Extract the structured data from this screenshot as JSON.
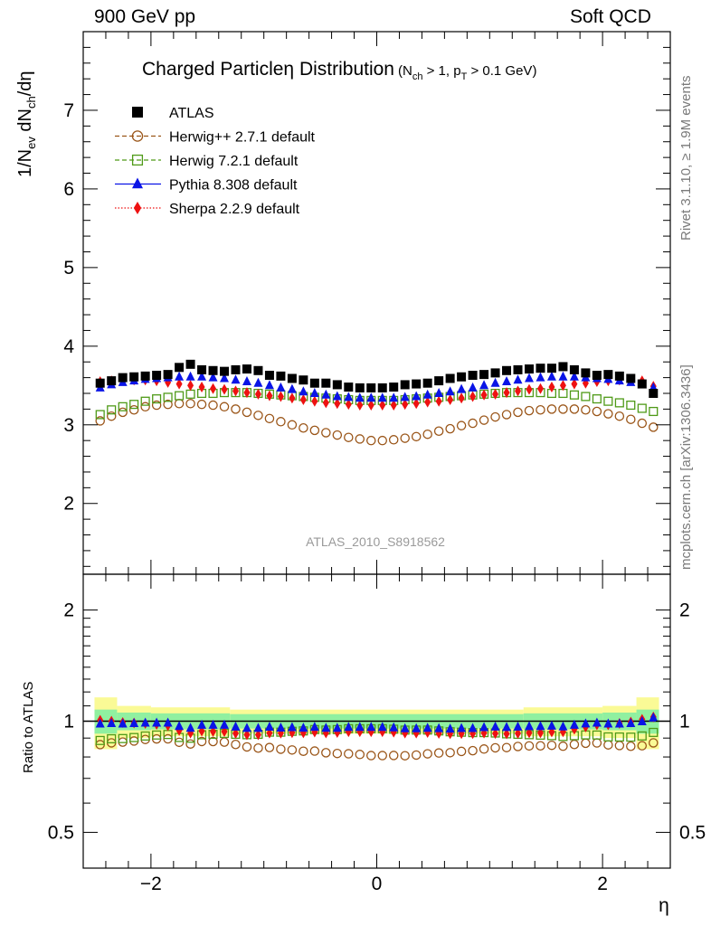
{
  "header": {
    "left": "900 GeV pp",
    "right": "Soft QCD"
  },
  "side_labels": {
    "rivet": "Rivet 3.1.10, ≥ 1.9M events",
    "mcplots": "mcplots.cern.ch [arXiv:1306.3436]"
  },
  "chart_data": [
    {
      "type": "scatter",
      "title": {
        "main": "Charged Particle",
        "eta": "η",
        "rest": " Distribution",
        "cuts_pre": "(N",
        "cuts_sub1": "ch",
        "cuts_mid1": " > 1, p",
        "cuts_sub2": "T",
        "cuts_end": " > 0.1 GeV)"
      },
      "ylabel_parts": {
        "a": "1/N",
        "a_sub": "ev",
        "b": " dN",
        "b_sub": "ch",
        "c": "/dη"
      },
      "xlabel": "η",
      "analysis_label": "ATLAS_2010_S8918562",
      "xlim": [
        -2.6,
        2.6
      ],
      "ylim": [
        1.1,
        8.0
      ],
      "yticks": [
        2,
        3,
        4,
        5,
        6,
        7
      ],
      "xticks": [
        -2,
        0,
        2
      ],
      "legend_position": "top-left",
      "x": [
        -2.45,
        -2.35,
        -2.25,
        -2.15,
        -2.05,
        -1.95,
        -1.85,
        -1.75,
        -1.65,
        -1.55,
        -1.45,
        -1.35,
        -1.25,
        -1.15,
        -1.05,
        -0.95,
        -0.85,
        -0.75,
        -0.65,
        -0.55,
        -0.45,
        -0.35,
        -0.25,
        -0.15,
        -0.05,
        0.05,
        0.15,
        0.25,
        0.35,
        0.45,
        0.55,
        0.65,
        0.75,
        0.85,
        0.95,
        1.05,
        1.15,
        1.25,
        1.35,
        1.45,
        1.55,
        1.65,
        1.75,
        1.85,
        1.95,
        2.05,
        2.15,
        2.25,
        2.35,
        2.45
      ],
      "series": [
        {
          "name": "ATLAS",
          "color": "#000000",
          "marker": "square-filled",
          "line": "none",
          "values": [
            3.53,
            3.56,
            3.6,
            3.61,
            3.62,
            3.63,
            3.64,
            3.73,
            3.77,
            3.7,
            3.69,
            3.68,
            3.7,
            3.71,
            3.69,
            3.63,
            3.62,
            3.59,
            3.57,
            3.53,
            3.53,
            3.51,
            3.48,
            3.47,
            3.47,
            3.47,
            3.48,
            3.51,
            3.52,
            3.53,
            3.56,
            3.59,
            3.61,
            3.63,
            3.64,
            3.66,
            3.69,
            3.7,
            3.71,
            3.72,
            3.72,
            3.74,
            3.7,
            3.66,
            3.63,
            3.64,
            3.62,
            3.59,
            3.52,
            3.4
          ]
        },
        {
          "name": "Herwig++ 2.7.1 default",
          "color": "#9a5518",
          "marker": "circle-open",
          "line": "dashed",
          "values": [
            3.05,
            3.11,
            3.16,
            3.19,
            3.23,
            3.25,
            3.26,
            3.27,
            3.27,
            3.26,
            3.25,
            3.23,
            3.2,
            3.16,
            3.12,
            3.08,
            3.04,
            3.0,
            2.96,
            2.93,
            2.9,
            2.87,
            2.84,
            2.82,
            2.8,
            2.8,
            2.81,
            2.83,
            2.85,
            2.88,
            2.92,
            2.95,
            2.99,
            3.02,
            3.06,
            3.1,
            3.13,
            3.16,
            3.18,
            3.19,
            3.2,
            3.2,
            3.2,
            3.19,
            3.17,
            3.14,
            3.11,
            3.07,
            3.02,
            2.97
          ]
        },
        {
          "name": "Herwig 7.2.1 default",
          "color": "#4f9a18",
          "marker": "square-open",
          "line": "dashed",
          "values": [
            3.13,
            3.19,
            3.23,
            3.26,
            3.3,
            3.33,
            3.35,
            3.37,
            3.39,
            3.4,
            3.4,
            3.41,
            3.41,
            3.41,
            3.4,
            3.39,
            3.38,
            3.37,
            3.36,
            3.35,
            3.34,
            3.33,
            3.32,
            3.31,
            3.31,
            3.31,
            3.31,
            3.32,
            3.33,
            3.34,
            3.35,
            3.36,
            3.37,
            3.38,
            3.39,
            3.4,
            3.41,
            3.41,
            3.41,
            3.41,
            3.4,
            3.4,
            3.38,
            3.36,
            3.33,
            3.3,
            3.28,
            3.25,
            3.21,
            3.17
          ]
        },
        {
          "name": "Pythia 8.308 default",
          "color": "#0a14e6",
          "marker": "triangle-filled",
          "line": "solid",
          "values": [
            3.47,
            3.51,
            3.54,
            3.56,
            3.58,
            3.59,
            3.6,
            3.61,
            3.61,
            3.61,
            3.6,
            3.59,
            3.57,
            3.55,
            3.53,
            3.5,
            3.47,
            3.45,
            3.42,
            3.4,
            3.38,
            3.36,
            3.35,
            3.34,
            3.34,
            3.34,
            3.34,
            3.35,
            3.36,
            3.38,
            3.4,
            3.42,
            3.45,
            3.47,
            3.5,
            3.53,
            3.55,
            3.57,
            3.59,
            3.6,
            3.61,
            3.61,
            3.61,
            3.6,
            3.59,
            3.58,
            3.56,
            3.54,
            3.51,
            3.47
          ]
        },
        {
          "name": "Sherpa 2.2.9 default",
          "color": "#ee1111",
          "marker": "diamond-filled",
          "line": "dotted",
          "values": [
            3.55,
            3.56,
            3.57,
            3.57,
            3.57,
            3.56,
            3.54,
            3.52,
            3.5,
            3.48,
            3.46,
            3.45,
            3.43,
            3.41,
            3.39,
            3.37,
            3.36,
            3.34,
            3.32,
            3.3,
            3.28,
            3.27,
            3.26,
            3.25,
            3.25,
            3.25,
            3.25,
            3.26,
            3.27,
            3.29,
            3.3,
            3.32,
            3.34,
            3.36,
            3.38,
            3.39,
            3.41,
            3.43,
            3.45,
            3.46,
            3.48,
            3.5,
            3.52,
            3.53,
            3.55,
            3.56,
            3.57,
            3.57,
            3.56,
            3.49
          ]
        }
      ]
    },
    {
      "type": "scatter",
      "ylabel": "Ratio to ATLAS",
      "ylim": [
        0.4,
        2.5
      ],
      "yscale": "log",
      "yticks": [
        0.5,
        1,
        2
      ],
      "ytick_labels": [
        "0.5",
        "1",
        "2"
      ],
      "reference_line": 1,
      "band_edges": [
        -2.5,
        -2.3,
        -2.0,
        -1.3,
        1.3,
        2.0,
        2.3,
        2.5
      ],
      "band_inner_halfwidth": [
        0.075,
        0.055,
        0.05,
        0.045,
        0.05,
        0.055,
        0.075
      ],
      "band_outer_halfwidth": [
        0.16,
        0.1,
        0.09,
        0.075,
        0.09,
        0.1,
        0.16
      ],
      "band_inner_color": "#90f0a0",
      "band_outer_color": "#fafa96",
      "series_ratio": "computed from series values divided by ATLAS"
    }
  ]
}
